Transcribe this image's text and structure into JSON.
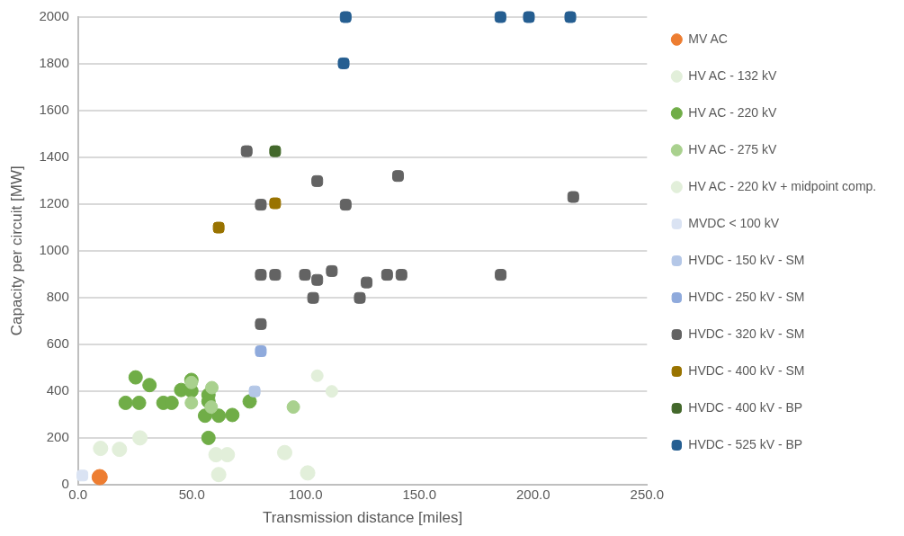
{
  "chart_data": {
    "type": "scatter",
    "xlabel": "Transmission distance [miles]",
    "ylabel": "Capacity per circuit [MW]",
    "xlim": [
      0,
      250
    ],
    "ylim": [
      0,
      2000
    ],
    "xticks": [
      {
        "value": 0,
        "label": "0.0"
      },
      {
        "value": 50,
        "label": "50.0"
      },
      {
        "value": 100,
        "label": "100.0"
      },
      {
        "value": 150,
        "label": "150.0"
      },
      {
        "value": 200,
        "label": "200.0"
      },
      {
        "value": 250,
        "label": "250.0"
      }
    ],
    "yticks": [
      0,
      200,
      400,
      600,
      800,
      1000,
      1200,
      1400,
      1600,
      1800,
      2000
    ],
    "grid": "y",
    "legend": "right",
    "series": [
      {
        "name": "MV AC",
        "color": "#ed7d31",
        "marker": "circle",
        "x": [
          9.5
        ],
        "values": [
          31
        ]
      },
      {
        "name": "HV AC - 132 kV",
        "color": "#e2efda",
        "marker": "circle",
        "x": [
          9.9,
          18.2,
          27.2,
          60.6,
          65.6,
          61.8,
          90.8,
          100.9
        ],
        "values": [
          154,
          150,
          199,
          127,
          127,
          42,
          136,
          49
        ]
      },
      {
        "name": "HV AC - 220 kV",
        "color": "#70ad47",
        "marker": "circle",
        "x": [
          25.3,
          31.4,
          20.9,
          26.8,
          37.5,
          41.1,
          45.3,
          49.8,
          49.8,
          57.3,
          57.3,
          55.8,
          61.8,
          67.8,
          75.4,
          57.3
        ],
        "values": [
          458,
          425,
          349,
          349,
          349,
          349,
          404,
          447,
          400,
          383,
          355,
          294,
          294,
          297,
          355,
          199
        ]
      },
      {
        "name": "HV AC - 275 kV",
        "color": "#a9d18e",
        "marker": "circle",
        "x": [
          49.8,
          58.8,
          49.8,
          58.5,
          94.6
        ],
        "values": [
          436,
          414,
          349,
          331,
          331
        ]
      },
      {
        "name": "HV AC - 220 kV + midpoint comp.",
        "color": "#e2efda",
        "marker": "circle",
        "x": [
          105.1,
          111.5
        ],
        "values": [
          465,
          398
        ]
      },
      {
        "name": "MVDC < 100 kV",
        "color": "#dae3f3",
        "marker": "square",
        "x": [
          1.9
        ],
        "values": [
          38
        ]
      },
      {
        "name": "HVDC - 150 kV - SM",
        "color": "#b4c7e7",
        "marker": "square",
        "x": [
          77.6
        ],
        "values": [
          398
        ]
      },
      {
        "name": "HVDC - 250 kV - SM",
        "color": "#8faadc",
        "marker": "square",
        "x": [
          80.3
        ],
        "values": [
          570
        ]
      },
      {
        "name": "HVDC - 320 kV - SM",
        "color": "#636363",
        "marker": "square",
        "x": [
          74.1,
          105.1,
          140.6,
          80.3,
          117.6,
          80.3,
          86.6,
          99.7,
          105.1,
          111.5,
          126.8,
          135.8,
          142.1,
          103.3,
          123.8,
          80.3,
          217.6,
          185.7
        ],
        "values": [
          1426,
          1298,
          1320,
          1197,
          1197,
          897,
          897,
          897,
          875,
          913,
          864,
          897,
          897,
          798,
          798,
          686,
          1230,
          897
        ]
      },
      {
        "name": "HVDC - 400 kV - SM",
        "color": "#997300",
        "marker": "square",
        "x": [
          86.6,
          61.8
        ],
        "values": [
          1203,
          1099
        ]
      },
      {
        "name": "HVDC - 400 kV - BP",
        "color": "#43682b",
        "marker": "square",
        "x": [
          86.6
        ],
        "values": [
          1426
        ]
      },
      {
        "name": "HVDC - 525 kV - BP",
        "color": "#255e91",
        "marker": "square",
        "x": [
          117.6,
          116.7,
          185.6,
          198.1,
          216.3
        ],
        "values": [
          2000,
          1802,
          2000,
          2000,
          2000
        ]
      }
    ]
  }
}
